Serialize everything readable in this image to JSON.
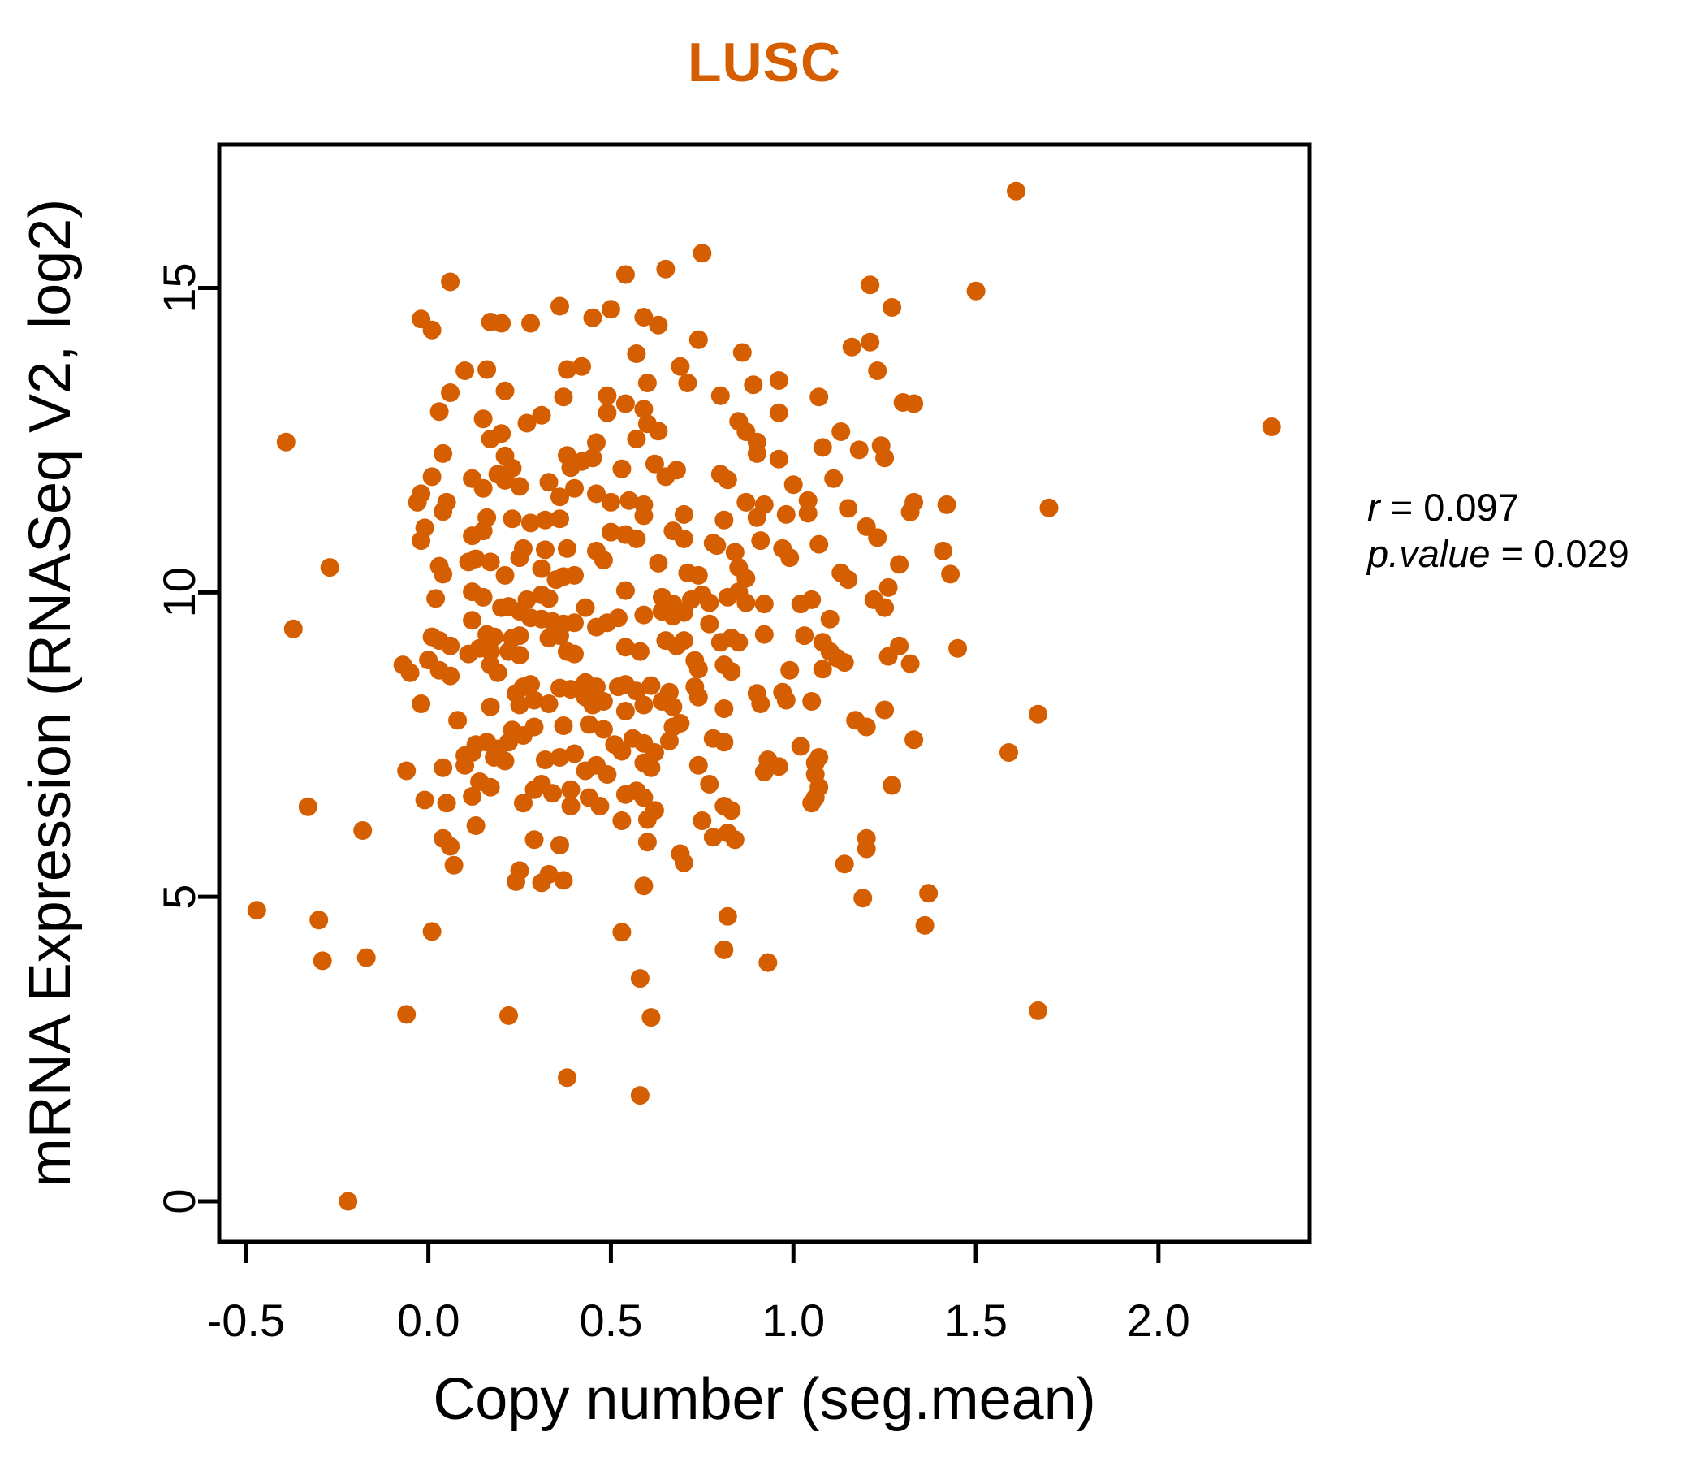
{
  "chart_data": {
    "type": "scatter",
    "title": "LUSC",
    "title_color": "#D55E00",
    "point_color": "#D55E00",
    "axis_color": "#000000",
    "xlabel": "Copy number (seg.mean)",
    "ylabel": "mRNA Expression (RNASeq V2, log2)",
    "xlim": [
      -0.573,
      2.414
    ],
    "ylim": [
      -0.667,
      17.355
    ],
    "grid": false,
    "x_ticks": {
      "values": [
        -0.5,
        0.0,
        0.5,
        1.0,
        1.5,
        2.0
      ],
      "labels": [
        "-0.5",
        "0.0",
        "0.5",
        "1.0",
        "1.5",
        "2.0"
      ]
    },
    "y_ticks": {
      "values": [
        0,
        5,
        10,
        15
      ],
      "labels": [
        "0",
        "5",
        "10",
        "15"
      ]
    },
    "annotation": {
      "r_label": "r",
      "r_rest": "= 0.097",
      "p_label": "p.value",
      "p_rest": "= 0.029"
    },
    "points": [
      [
        1.61,
        16.59
      ],
      [
        0.75,
        15.57
      ],
      [
        0.65,
        15.31
      ],
      [
        0.54,
        15.22
      ],
      [
        0.06,
        15.1
      ],
      [
        1.21,
        15.05
      ],
      [
        1.5,
        14.95
      ],
      [
        1.27,
        14.68
      ],
      [
        -0.02,
        14.49
      ],
      [
        0.01,
        14.31
      ],
      [
        0.17,
        14.44
      ],
      [
        0.2,
        14.42
      ],
      [
        0.28,
        14.42
      ],
      [
        0.36,
        14.7
      ],
      [
        0.45,
        14.51
      ],
      [
        0.5,
        14.65
      ],
      [
        0.59,
        14.52
      ],
      [
        0.63,
        14.39
      ],
      [
        0.74,
        14.15
      ],
      [
        0.86,
        13.94
      ],
      [
        0.57,
        13.92
      ],
      [
        1.16,
        14.03
      ],
      [
        1.21,
        14.11
      ],
      [
        0.1,
        13.64
      ],
      [
        0.16,
        13.66
      ],
      [
        0.06,
        13.28
      ],
      [
        0.03,
        12.97
      ],
      [
        0.21,
        13.31
      ],
      [
        0.37,
        13.21
      ],
      [
        0.38,
        13.66
      ],
      [
        0.42,
        13.71
      ],
      [
        0.69,
        13.71
      ],
      [
        0.71,
        13.44
      ],
      [
        1.23,
        13.64
      ],
      [
        0.6,
        13.44
      ],
      [
        0.89,
        13.41
      ],
      [
        0.96,
        13.48
      ],
      [
        0.8,
        13.23
      ],
      [
        1.07,
        13.21
      ],
      [
        1.3,
        13.12
      ],
      [
        0.49,
        13.23
      ],
      [
        0.54,
        13.1
      ],
      [
        0.49,
        12.95
      ],
      [
        0.59,
        13.01
      ],
      [
        0.6,
        12.77
      ],
      [
        0.96,
        12.95
      ],
      [
        0.85,
        12.81
      ],
      [
        0.87,
        12.64
      ],
      [
        0.9,
        12.47
      ],
      [
        0.63,
        12.65
      ],
      [
        0.57,
        12.52
      ],
      [
        0.46,
        12.46
      ],
      [
        1.33,
        13.1
      ],
      [
        0.15,
        12.85
      ],
      [
        0.2,
        12.61
      ],
      [
        0.27,
        12.78
      ],
      [
        0.31,
        12.91
      ],
      [
        -0.39,
        12.47
      ],
      [
        0.17,
        12.52
      ],
      [
        2.31,
        12.72
      ],
      [
        0.21,
        12.24
      ],
      [
        0.04,
        12.28
      ],
      [
        0.23,
        12.04
      ],
      [
        0.38,
        12.25
      ],
      [
        0.39,
        12.05
      ],
      [
        0.42,
        12.15
      ],
      [
        0.45,
        12.21
      ],
      [
        0.9,
        12.28
      ],
      [
        0.96,
        12.19
      ],
      [
        1.08,
        12.38
      ],
      [
        1.13,
        12.64
      ],
      [
        1.18,
        12.34
      ],
      [
        1.24,
        12.41
      ],
      [
        1.25,
        12.21
      ],
      [
        0.53,
        12.03
      ],
      [
        0.62,
        12.11
      ],
      [
        0.68,
        12.01
      ],
      [
        0.01,
        11.9
      ],
      [
        -0.02,
        11.62
      ],
      [
        0.12,
        11.87
      ],
      [
        0.15,
        11.71
      ],
      [
        0.19,
        11.94
      ],
      [
        0.21,
        11.84
      ],
      [
        0.25,
        11.74
      ],
      [
        0.33,
        11.81
      ],
      [
        0.36,
        11.57
      ],
      [
        0.4,
        11.71
      ],
      [
        0.65,
        11.9
      ],
      [
        0.8,
        11.94
      ],
      [
        0.82,
        11.85
      ],
      [
        1.0,
        11.77
      ],
      [
        1.11,
        11.87
      ],
      [
        -0.03,
        11.48
      ],
      [
        0.05,
        11.48
      ],
      [
        0.46,
        11.62
      ],
      [
        0.5,
        11.48
      ],
      [
        0.55,
        11.51
      ],
      [
        0.59,
        11.44
      ],
      [
        0.87,
        11.48
      ],
      [
        0.92,
        11.44
      ],
      [
        1.04,
        11.51
      ],
      [
        1.15,
        11.38
      ],
      [
        1.33,
        11.48
      ],
      [
        1.42,
        11.44
      ],
      [
        1.7,
        11.39
      ],
      [
        -0.01,
        11.06
      ],
      [
        -0.02,
        10.85
      ],
      [
        0.04,
        11.33
      ],
      [
        0.12,
        10.93
      ],
      [
        0.15,
        11.01
      ],
      [
        0.16,
        11.23
      ],
      [
        0.23,
        11.21
      ],
      [
        0.28,
        11.14
      ],
      [
        0.32,
        11.19
      ],
      [
        0.36,
        11.21
      ],
      [
        0.38,
        10.72
      ],
      [
        0.32,
        10.7
      ],
      [
        0.26,
        10.72
      ],
      [
        0.25,
        10.57
      ],
      [
        0.31,
        10.39
      ],
      [
        0.11,
        10.5
      ],
      [
        0.13,
        10.55
      ],
      [
        0.17,
        10.5
      ],
      [
        0.03,
        10.43
      ],
      [
        0.04,
        10.3
      ],
      [
        0.21,
        10.28
      ],
      [
        0.35,
        10.21
      ],
      [
        0.37,
        10.26
      ],
      [
        0.4,
        10.28
      ],
      [
        0.02,
        9.9
      ],
      [
        0.12,
        10.01
      ],
      [
        0.15,
        9.92
      ],
      [
        0.27,
        9.88
      ],
      [
        0.31,
        9.96
      ],
      [
        0.33,
        9.9
      ],
      [
        0.12,
        9.54
      ],
      [
        0.2,
        9.75
      ],
      [
        0.22,
        9.77
      ],
      [
        0.25,
        9.69
      ],
      [
        0.28,
        9.58
      ],
      [
        0.31,
        9.56
      ],
      [
        0.34,
        9.52
      ],
      [
        0.37,
        9.48
      ],
      [
        0.4,
        9.5
      ],
      [
        0.01,
        9.27
      ],
      [
        0.03,
        9.21
      ],
      [
        0.06,
        9.12
      ],
      [
        0.16,
        9.31
      ],
      [
        0.18,
        9.27
      ],
      [
        0.14,
        9.08
      ],
      [
        0.17,
        9.03
      ],
      [
        0.23,
        9.25
      ],
      [
        0.25,
        9.29
      ],
      [
        0.22,
        9.03
      ],
      [
        0.25,
        8.97
      ],
      [
        0.33,
        9.25
      ],
      [
        0.36,
        9.29
      ],
      [
        0.38,
        9.03
      ],
      [
        0.4,
        8.99
      ],
      [
        -0.07,
        8.81
      ],
      [
        -0.05,
        8.68
      ],
      [
        0.0,
        8.89
      ],
      [
        0.03,
        8.72
      ],
      [
        0.06,
        8.63
      ],
      [
        0.11,
        8.99
      ],
      [
        0.17,
        8.81
      ],
      [
        0.19,
        8.68
      ],
      [
        0.26,
        8.45
      ],
      [
        0.28,
        8.49
      ],
      [
        0.36,
        8.43
      ],
      [
        0.39,
        8.41
      ],
      [
        -0.02,
        8.17
      ],
      [
        0.17,
        8.12
      ],
      [
        0.24,
        8.34
      ],
      [
        0.25,
        8.15
      ],
      [
        0.29,
        8.23
      ],
      [
        0.33,
        8.17
      ],
      [
        0.37,
        7.81
      ],
      [
        0.08,
        7.9
      ],
      [
        0.23,
        7.74
      ],
      [
        0.26,
        7.65
      ],
      [
        0.29,
        7.79
      ],
      [
        0.13,
        7.5
      ],
      [
        0.16,
        7.54
      ],
      [
        0.19,
        7.43
      ],
      [
        0.22,
        7.54
      ],
      [
        0.1,
        7.32
      ],
      [
        0.12,
        7.37
      ],
      [
        0.18,
        7.29
      ],
      [
        0.21,
        7.23
      ],
      [
        0.32,
        7.25
      ],
      [
        0.36,
        7.29
      ],
      [
        0.4,
        7.35
      ],
      [
        -0.06,
        7.07
      ],
      [
        0.04,
        7.12
      ],
      [
        0.1,
        7.16
      ],
      [
        0.14,
        6.89
      ],
      [
        0.17,
        6.8
      ],
      [
        0.29,
        6.76
      ],
      [
        0.31,
        6.85
      ],
      [
        0.34,
        6.7
      ],
      [
        0.39,
        6.76
      ],
      [
        -0.01,
        6.59
      ],
      [
        0.05,
        6.54
      ],
      [
        0.12,
        6.65
      ],
      [
        0.26,
        6.54
      ],
      [
        0.39,
        6.49
      ],
      [
        0.04,
        5.96
      ],
      [
        0.06,
        5.83
      ],
      [
        0.13,
        6.17
      ],
      [
        0.29,
        5.94
      ],
      [
        0.36,
        5.85
      ],
      [
        0.07,
        5.52
      ],
      [
        0.25,
        5.43
      ],
      [
        0.33,
        5.37
      ],
      [
        -0.27,
        10.41
      ],
      [
        -0.37,
        9.4
      ],
      [
        -0.33,
        6.48
      ],
      [
        -0.18,
        6.09
      ],
      [
        0.59,
        11.26
      ],
      [
        0.7,
        11.28
      ],
      [
        0.81,
        11.19
      ],
      [
        0.9,
        11.23
      ],
      [
        0.98,
        11.28
      ],
      [
        1.04,
        11.3
      ],
      [
        1.32,
        11.32
      ],
      [
        1.41,
        10.68
      ],
      [
        0.5,
        10.99
      ],
      [
        0.54,
        10.95
      ],
      [
        0.57,
        10.88
      ],
      [
        0.67,
        11.01
      ],
      [
        0.7,
        10.88
      ],
      [
        0.78,
        10.81
      ],
      [
        0.84,
        10.66
      ],
      [
        0.91,
        10.85
      ],
      [
        0.97,
        10.72
      ],
      [
        0.99,
        10.57
      ],
      [
        1.07,
        10.79
      ],
      [
        1.2,
        11.08
      ],
      [
        1.23,
        10.9
      ],
      [
        0.46,
        10.68
      ],
      [
        0.48,
        10.53
      ],
      [
        0.63,
        10.48
      ],
      [
        0.71,
        10.32
      ],
      [
        0.74,
        10.28
      ],
      [
        0.79,
        10.77
      ],
      [
        0.85,
        10.41
      ],
      [
        0.87,
        10.23
      ],
      [
        1.13,
        10.32
      ],
      [
        1.15,
        10.21
      ],
      [
        1.29,
        10.46
      ],
      [
        1.26,
        10.08
      ],
      [
        0.54,
        10.03
      ],
      [
        0.64,
        9.92
      ],
      [
        0.67,
        9.81
      ],
      [
        0.72,
        9.88
      ],
      [
        0.64,
        9.69
      ],
      [
        0.67,
        9.61
      ],
      [
        0.7,
        9.67
      ],
      [
        0.75,
        9.96
      ],
      [
        0.77,
        9.83
      ],
      [
        0.82,
        9.92
      ],
      [
        0.85,
        10.01
      ],
      [
        0.87,
        9.83
      ],
      [
        0.92,
        9.81
      ],
      [
        1.02,
        9.81
      ],
      [
        1.05,
        9.88
      ],
      [
        1.1,
        9.56
      ],
      [
        1.22,
        9.88
      ],
      [
        1.25,
        9.75
      ],
      [
        0.43,
        9.75
      ],
      [
        0.46,
        9.43
      ],
      [
        0.49,
        9.5
      ],
      [
        0.52,
        9.58
      ],
      [
        0.54,
        9.1
      ],
      [
        0.58,
        9.03
      ],
      [
        0.59,
        9.63
      ],
      [
        0.65,
        9.21
      ],
      [
        0.68,
        9.12
      ],
      [
        0.7,
        9.21
      ],
      [
        0.73,
        8.88
      ],
      [
        0.74,
        8.74
      ],
      [
        0.77,
        9.48
      ],
      [
        0.8,
        9.18
      ],
      [
        0.83,
        9.25
      ],
      [
        0.85,
        9.18
      ],
      [
        0.81,
        8.81
      ],
      [
        0.83,
        8.7
      ],
      [
        0.92,
        9.31
      ],
      [
        1.03,
        9.29
      ],
      [
        1.08,
        9.18
      ],
      [
        1.1,
        9.03
      ],
      [
        1.12,
        8.92
      ],
      [
        1.14,
        8.85
      ],
      [
        1.08,
        8.74
      ],
      [
        1.26,
        8.95
      ],
      [
        1.29,
        9.12
      ],
      [
        1.32,
        8.83
      ],
      [
        0.99,
        8.72
      ],
      [
        0.43,
        8.52
      ],
      [
        0.46,
        8.45
      ],
      [
        0.43,
        8.28
      ],
      [
        0.45,
        8.15
      ],
      [
        0.48,
        8.21
      ],
      [
        0.52,
        8.45
      ],
      [
        0.54,
        8.49
      ],
      [
        0.57,
        8.38
      ],
      [
        0.59,
        8.15
      ],
      [
        0.54,
        8.05
      ],
      [
        0.61,
        8.47
      ],
      [
        0.66,
        8.36
      ],
      [
        0.64,
        8.21
      ],
      [
        0.67,
        8.12
      ],
      [
        0.73,
        8.45
      ],
      [
        0.74,
        8.28
      ],
      [
        0.81,
        8.09
      ],
      [
        0.9,
        8.34
      ],
      [
        0.91,
        8.17
      ],
      [
        0.97,
        8.36
      ],
      [
        0.98,
        8.23
      ],
      [
        1.05,
        8.21
      ],
      [
        1.25,
        8.07
      ],
      [
        0.44,
        7.83
      ],
      [
        0.48,
        7.75
      ],
      [
        0.51,
        7.5
      ],
      [
        0.53,
        7.39
      ],
      [
        0.56,
        7.6
      ],
      [
        0.59,
        7.52
      ],
      [
        0.62,
        7.37
      ],
      [
        0.59,
        7.2
      ],
      [
        0.61,
        7.12
      ],
      [
        0.67,
        7.79
      ],
      [
        0.69,
        7.85
      ],
      [
        0.66,
        7.56
      ],
      [
        0.78,
        7.6
      ],
      [
        0.81,
        7.54
      ],
      [
        0.74,
        7.16
      ],
      [
        0.93,
        7.25
      ],
      [
        0.96,
        7.14
      ],
      [
        0.92,
        7.05
      ],
      [
        1.02,
        7.47
      ],
      [
        1.07,
        7.29
      ],
      [
        1.17,
        7.9
      ],
      [
        1.2,
        7.79
      ],
      [
        1.33,
        7.58
      ],
      [
        0.43,
        7.07
      ],
      [
        0.46,
        7.16
      ],
      [
        0.49,
        7.01
      ],
      [
        0.77,
        6.85
      ],
      [
        1.06,
        7.2
      ],
      [
        1.06,
        7.01
      ],
      [
        1.07,
        6.8
      ],
      [
        1.06,
        6.63
      ],
      [
        1.27,
        6.83
      ],
      [
        0.44,
        6.63
      ],
      [
        0.47,
        6.49
      ],
      [
        0.54,
        6.68
      ],
      [
        0.57,
        6.74
      ],
      [
        0.59,
        6.63
      ],
      [
        0.81,
        6.49
      ],
      [
        0.83,
        6.42
      ],
      [
        1.05,
        6.54
      ],
      [
        0.53,
        6.25
      ],
      [
        0.6,
        6.27
      ],
      [
        0.62,
        6.42
      ],
      [
        0.75,
        6.25
      ],
      [
        0.82,
        6.05
      ],
      [
        0.84,
        5.94
      ],
      [
        0.78,
        5.98
      ],
      [
        0.6,
        5.9
      ],
      [
        0.69,
        5.71
      ],
      [
        0.7,
        5.56
      ],
      [
        1.2,
        5.96
      ],
      [
        1.2,
        5.79
      ],
      [
        1.14,
        5.54
      ],
      [
        1.43,
        10.3
      ],
      [
        1.45,
        9.08
      ],
      [
        1.67,
        8.0
      ],
      [
        1.59,
        7.37
      ],
      [
        0.24,
        5.25
      ],
      [
        0.31,
        5.23
      ],
      [
        0.37,
        5.27
      ],
      [
        0.59,
        5.18
      ],
      [
        1.19,
        4.98
      ],
      [
        1.37,
        5.06
      ],
      [
        -0.47,
        4.78
      ],
      [
        -0.3,
        4.62
      ],
      [
        0.01,
        4.43
      ],
      [
        0.53,
        4.42
      ],
      [
        0.82,
        4.68
      ],
      [
        1.36,
        4.53
      ],
      [
        -0.29,
        3.95
      ],
      [
        -0.17,
        4.0
      ],
      [
        0.81,
        4.13
      ],
      [
        0.93,
        3.92
      ],
      [
        0.58,
        3.66
      ],
      [
        -0.06,
        3.07
      ],
      [
        0.22,
        3.05
      ],
      [
        0.61,
        3.02
      ],
      [
        1.67,
        3.13
      ],
      [
        0.38,
        2.03
      ],
      [
        0.58,
        1.74
      ],
      [
        -0.22,
        0.0
      ]
    ]
  }
}
